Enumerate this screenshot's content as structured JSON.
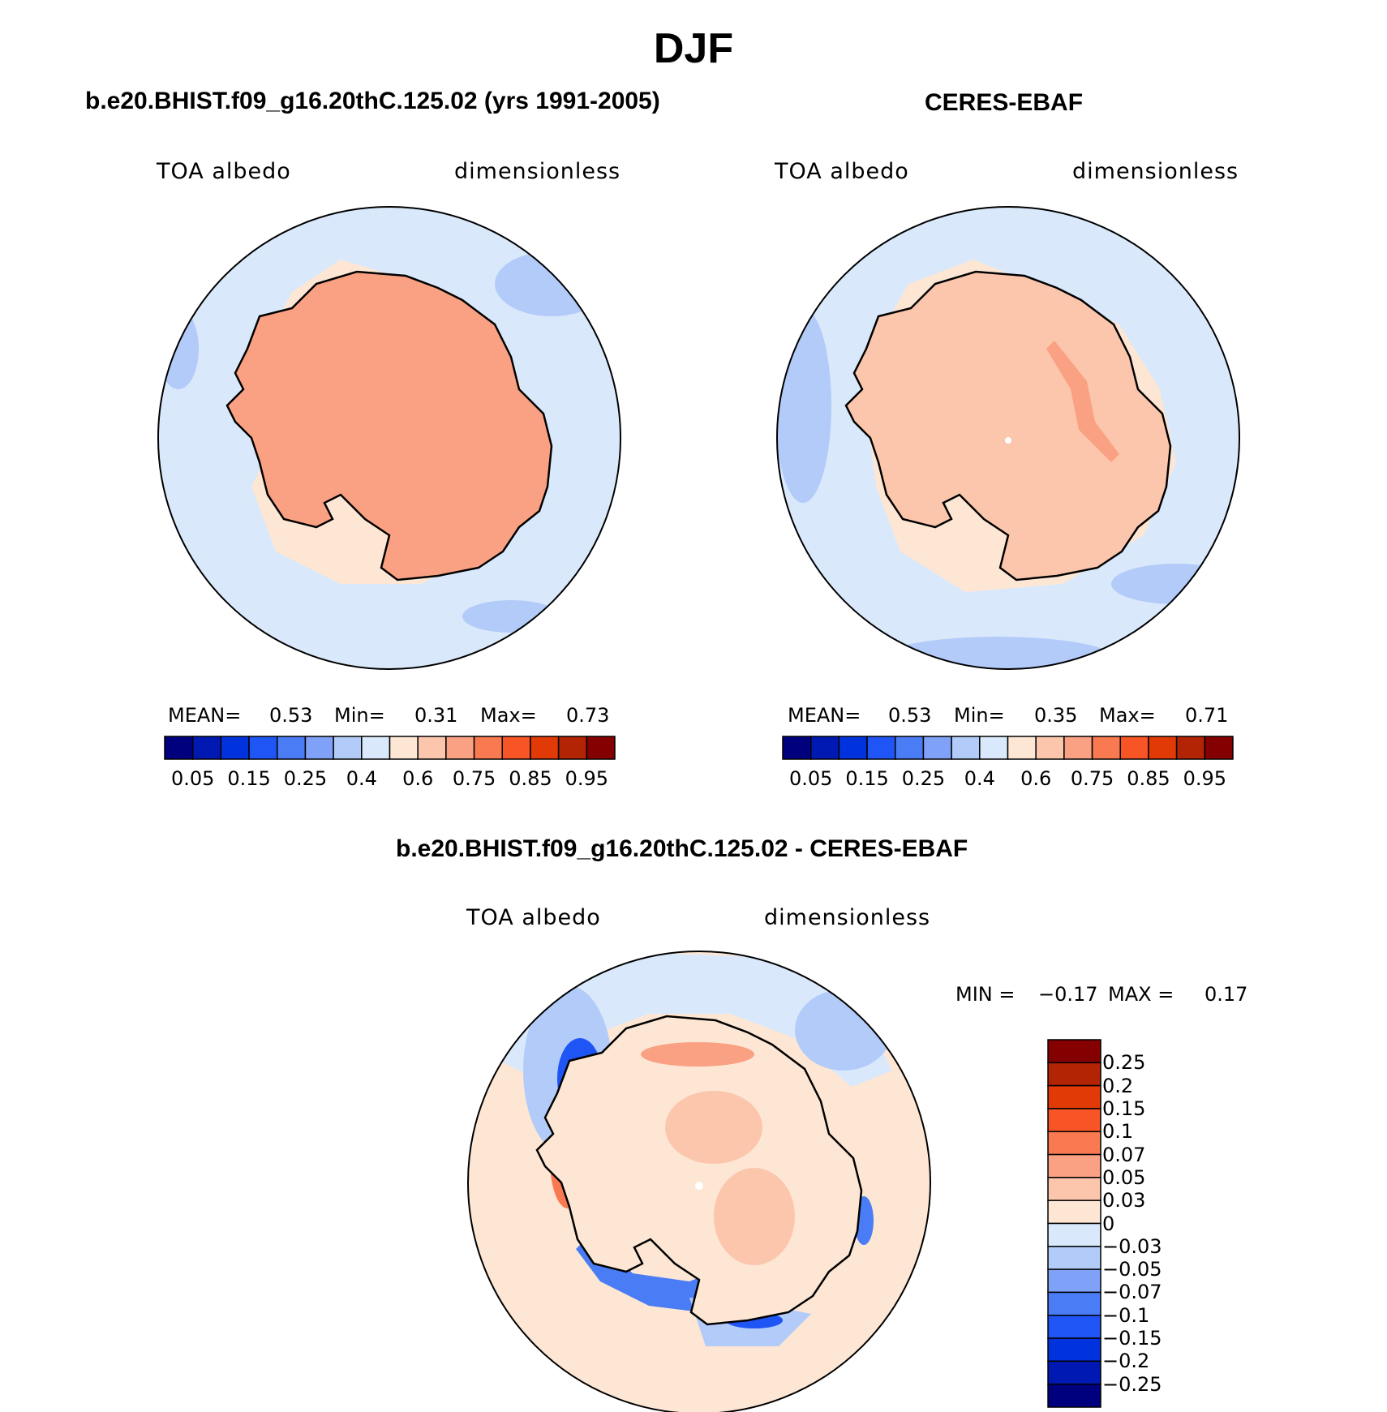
{
  "title": "DJF",
  "panels": [
    {
      "id": "model",
      "title": "b.e20.BHIST.f09_g16.20thC.125.02 (yrs 1991-2005)",
      "left_label": "TOA albedo",
      "right_label": "dimensionless",
      "stats": {
        "mean_label": "MEAN=",
        "mean": "0.53",
        "min_label": "Min=",
        "min": "0.31",
        "max_label": "Max=",
        "max": "0.73"
      }
    },
    {
      "id": "obs",
      "title": "CERES-EBAF",
      "left_label": "TOA albedo",
      "right_label": "dimensionless",
      "stats": {
        "mean_label": "MEAN=",
        "mean": "0.53",
        "min_label": "Min=",
        "min": "0.35",
        "max_label": "Max=",
        "max": "0.71"
      }
    },
    {
      "id": "diff",
      "title": "b.e20.BHIST.f09_g16.20thC.125.02 - CERES-EBAF",
      "left_label": "TOA albedo",
      "right_label": "dimensionless",
      "stats": {
        "min_label": "MIN =",
        "min": "−0.17",
        "max_label": "MAX =",
        "max": "0.17"
      }
    }
  ],
  "colorbar_field": {
    "colors": [
      "#00007f",
      "#0019b3",
      "#0033dd",
      "#1f55f5",
      "#4a7df5",
      "#7fa1f7",
      "#b3cbf9",
      "#d9e9fb",
      "#fde6d4",
      "#fcc6ad",
      "#f9a182",
      "#f97a50",
      "#f75525",
      "#e23a07",
      "#b32405",
      "#850101"
    ],
    "tick_labels": [
      "0.05",
      "0.15",
      "0.25",
      "0.4",
      "0.6",
      "0.75",
      "0.85",
      "0.95"
    ]
  },
  "colorbar_diff": {
    "colors": [
      "#850101",
      "#b32405",
      "#e23a07",
      "#f75525",
      "#f97a50",
      "#f9a182",
      "#fcc6ad",
      "#fde6d4",
      "#d9e9fb",
      "#b3cbf9",
      "#7fa1f7",
      "#4a7df5",
      "#1f55f5",
      "#0033dd",
      "#0019b3",
      "#00007f"
    ],
    "tick_labels": [
      "0.25",
      "0.2",
      "0.15",
      "0.1",
      "0.07",
      "0.05",
      "0.03",
      "0",
      "−0.03",
      "−0.05",
      "−0.07",
      "−0.1",
      "−0.15",
      "−0.2",
      "−0.25"
    ]
  },
  "map_colors": {
    "ocean_light": "#d9e9fb",
    "ocean_mid": "#b3cbf9",
    "sea_ice": "#fde6d4",
    "ice_light": "#fcc6ad",
    "ice_mid": "#f9a182",
    "diff_neg_strong": "#1f55f5",
    "diff_neg_deep": "#0033dd",
    "diff_pos_strong": "#e23a07",
    "diff_pos": "#f97a50"
  }
}
